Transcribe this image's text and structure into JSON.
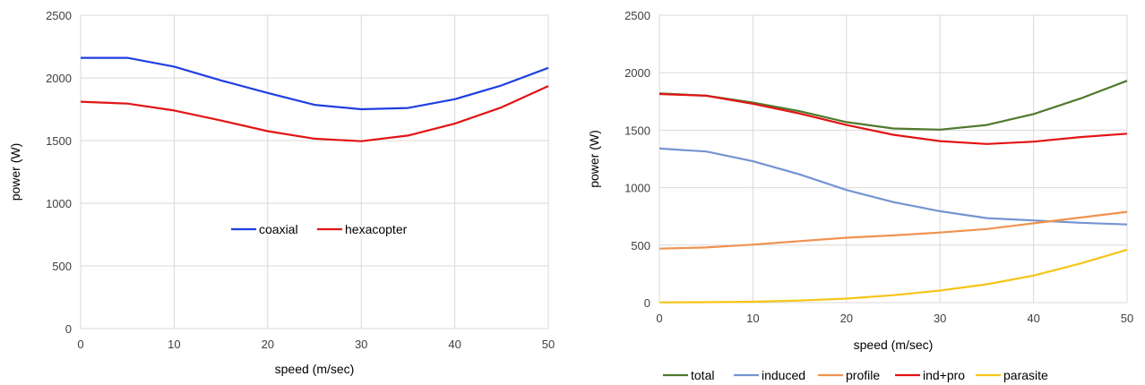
{
  "chart_data": [
    {
      "type": "line",
      "x": [
        0,
        5,
        10,
        15,
        20,
        25,
        30,
        35,
        40,
        45,
        50
      ],
      "xlabel": "speed (m/sec)",
      "ylabel": "power (W)",
      "xlim": [
        0,
        50
      ],
      "ylim": [
        0,
        2500
      ],
      "xticks": [
        "0",
        "10",
        "20",
        "30",
        "40",
        "50"
      ],
      "yticks": [
        "0",
        "500",
        "1000",
        "1500",
        "2000",
        "2500"
      ],
      "grid": true,
      "legend": "center",
      "series": [
        {
          "name": "coaxial",
          "color": "#1f3fe0",
          "values": [
            2160,
            2160,
            2090,
            1980,
            1880,
            1785,
            1750,
            1760,
            1830,
            1940,
            2080
          ]
        },
        {
          "name": "hexacopter",
          "color": "#e21414",
          "values": [
            1810,
            1795,
            1740,
            1660,
            1575,
            1515,
            1495,
            1540,
            1635,
            1765,
            1935
          ]
        }
      ]
    },
    {
      "type": "line",
      "x": [
        0,
        5,
        10,
        15,
        20,
        25,
        30,
        35,
        40,
        45,
        50
      ],
      "xlabel": "speed (m/sec)",
      "ylabel": "power (W)",
      "xlim": [
        0,
        50
      ],
      "ylim": [
        0,
        2500
      ],
      "xticks": [
        "0",
        "10",
        "20",
        "30",
        "40",
        "50"
      ],
      "yticks": [
        "0",
        "500",
        "1000",
        "1500",
        "2000",
        "2500"
      ],
      "grid": true,
      "legend": "bottom",
      "series": [
        {
          "name": "total",
          "color": "#4e7a2c",
          "values": [
            1820,
            1800,
            1740,
            1665,
            1570,
            1515,
            1505,
            1545,
            1640,
            1775,
            1930
          ]
        },
        {
          "name": "induced",
          "color": "#7594d2",
          "values": [
            1340,
            1315,
            1230,
            1115,
            980,
            875,
            795,
            735,
            715,
            695,
            680
          ]
        },
        {
          "name": "profile",
          "color": "#f0924e",
          "values": [
            470,
            480,
            505,
            535,
            565,
            585,
            610,
            640,
            690,
            740,
            790
          ]
        },
        {
          "name": "ind+pro",
          "color": "#e21414",
          "values": [
            1815,
            1800,
            1730,
            1645,
            1545,
            1460,
            1405,
            1380,
            1400,
            1440,
            1470
          ]
        },
        {
          "name": "parasite",
          "color": "#f5c518",
          "values": [
            2,
            4,
            8,
            18,
            35,
            65,
            105,
            160,
            235,
            340,
            460
          ]
        }
      ]
    }
  ]
}
